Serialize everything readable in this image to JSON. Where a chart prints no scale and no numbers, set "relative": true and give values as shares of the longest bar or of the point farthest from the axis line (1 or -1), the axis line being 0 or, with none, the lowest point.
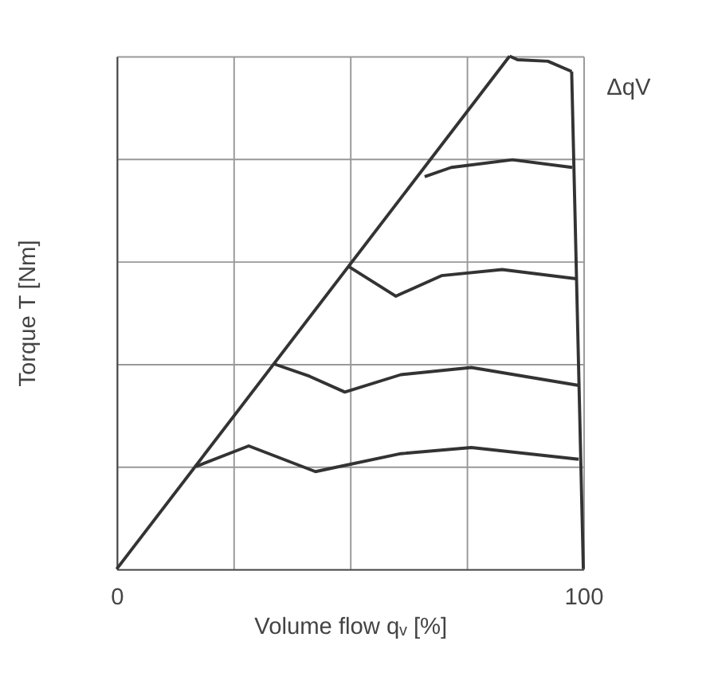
{
  "chart_data": {
    "type": "line",
    "relative": true,
    "xlabel": "Volume flow qᵥ [%]",
    "ylabel": "Torque T [Nm]",
    "xlim": [
      0,
      100
    ],
    "xticks": [
      0,
      {
        "value": 25,
        "label": null
      },
      {
        "value": 50,
        "label": null
      },
      {
        "value": 75,
        "label": null
      },
      100
    ],
    "tick_labels": "x",
    "grid": true,
    "legend": false,
    "marker": "none",
    "line_style": "solid",
    "annotations": [
      "ΔqV"
    ],
    "series": [
      {
        "color": "#333333",
        "x": [
          0,
          84.2
        ],
        "values": [
          0,
          1.0
        ]
      },
      {
        "color": "#333333",
        "x": [
          17,
          28.3,
          42.6,
          60.9,
          76,
          99
        ],
        "values": [
          0.2,
          0.24,
          0.19,
          0.225,
          0.237,
          0.214
        ]
      },
      {
        "color": "#333333",
        "x": [
          33.7,
          41.3,
          48.9,
          60.9,
          76,
          99
        ],
        "values": [
          0.4,
          0.376,
          0.345,
          0.379,
          0.393,
          0.358
        ]
      },
      {
        "color": "#333333",
        "x": [
          49.7,
          59.8,
          69.6,
          82.6,
          98.4
        ],
        "values": [
          0.59,
          0.532,
          0.572,
          0.584,
          0.566
        ]
      },
      {
        "color": "#333333",
        "x": [
          66,
          71.7,
          84.8,
          97.6
        ],
        "values": [
          0.765,
          0.783,
          0.798,
          0.783
        ]
      },
      {
        "color": "#333333",
        "x": [
          84.2,
          85.9,
          92.4,
          97.5
        ],
        "values": [
          1.0,
          0.993,
          0.99,
          0.97
        ]
      },
      {
        "color": "#333333",
        "x": [
          97.5,
          100
        ],
        "values": [
          0.97,
          0
        ]
      }
    ]
  }
}
